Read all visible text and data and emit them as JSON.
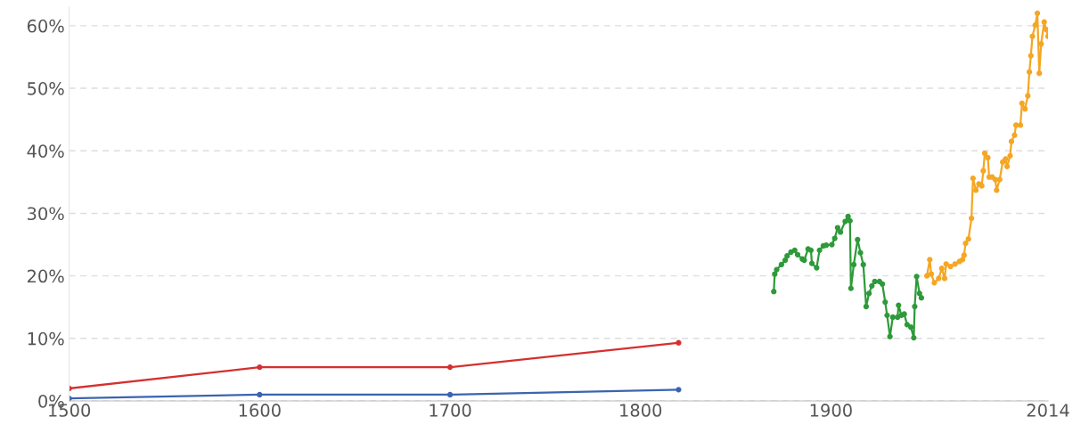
{
  "chart_data": {
    "type": "line",
    "xlim": [
      1500,
      2014
    ],
    "ylim": [
      0,
      63
    ],
    "xticks": [
      1500,
      1600,
      1700,
      1800,
      1900,
      2014
    ],
    "yticks": [
      {
        "value": 0,
        "label": "0%"
      },
      {
        "value": 10,
        "label": "10%"
      },
      {
        "value": 20,
        "label": "20%"
      },
      {
        "value": 30,
        "label": "30%"
      },
      {
        "value": 40,
        "label": "40%"
      },
      {
        "value": 50,
        "label": "50%"
      },
      {
        "value": 60,
        "label": "60%"
      }
    ],
    "grid": "y",
    "marker": "circle",
    "line_style": "solid",
    "series": [
      {
        "color": "#d62f2f",
        "x": [
          1500,
          1600,
          1700,
          1820
        ],
        "values": [
          2.0,
          5.4,
          5.4,
          9.3
        ]
      },
      {
        "color": "#3b64b0",
        "x": [
          1500,
          1600,
          1700,
          1820
        ],
        "values": [
          0.4,
          1.0,
          1.0,
          1.8
        ]
      },
      {
        "color": "#2e9a3a",
        "x": [
          1870,
          1870.5,
          1871.5,
          1874,
          1876,
          1877,
          1879,
          1881,
          1882.5,
          1885,
          1886,
          1888,
          1889.5,
          1890,
          1892.5,
          1894,
          1896,
          1897.5,
          1900.5,
          1902,
          1903.5,
          1905,
          1907.5,
          1909,
          1910,
          1910.5,
          1912,
          1914,
          1915.5,
          1917,
          1918.5,
          1920,
          1921.5,
          1923,
          1925.5,
          1927,
          1928.5,
          1929.5,
          1931,
          1932.5,
          1935,
          1935.5,
          1937,
          1938.5,
          1940,
          1942,
          1943.5,
          1944,
          1945,
          1946.5,
          1947.5
        ],
        "values": [
          17.5,
          20.3,
          21.0,
          21.8,
          22.5,
          23.2,
          23.8,
          24.1,
          23.4,
          22.7,
          22.5,
          24.3,
          24.1,
          22.0,
          21.3,
          24.1,
          24.8,
          24.9,
          25.0,
          26.0,
          27.7,
          27.0,
          28.7,
          29.5,
          28.8,
          18.0,
          21.8,
          25.8,
          23.7,
          21.8,
          15.1,
          17.2,
          18.4,
          19.1,
          19.1,
          18.7,
          15.8,
          13.7,
          10.3,
          13.4,
          13.4,
          15.3,
          13.7,
          13.9,
          12.2,
          11.8,
          10.1,
          15.1,
          19.9,
          17.2,
          16.5
        ]
      },
      {
        "color": "#f5a623",
        "x": [
          1950.4,
          1951.9,
          1952.7,
          1954.3,
          1956.6,
          1958.2,
          1959.7,
          1960.5,
          1962.8,
          1965.2,
          1967.5,
          1969.1,
          1969.9,
          1970.7,
          1972.2,
          1973.8,
          1974.6,
          1976.1,
          1977.7,
          1979.2,
          1980.0,
          1980.8,
          1982.4,
          1983.1,
          1984.7,
          1986.3,
          1987.0,
          1988.6,
          1990.2,
          1991.7,
          1992.5,
          1994.1,
          1994.8,
          1996.4,
          1997.2,
          1999.5,
          2000.3,
          2001.9,
          2003.4,
          2004.2,
          2005.0,
          2005.8,
          2007.3,
          2008.4,
          2009.4,
          2010.4,
          2012.0,
          2013.0,
          2014
        ],
        "values": [
          20.0,
          22.6,
          20.3,
          18.9,
          19.6,
          21.2,
          19.6,
          21.9,
          21.5,
          21.9,
          22.3,
          22.6,
          23.3,
          25.2,
          25.9,
          29.2,
          35.6,
          33.7,
          34.7,
          34.4,
          36.8,
          39.6,
          38.9,
          35.8,
          35.8,
          35.4,
          33.7,
          35.4,
          38.2,
          38.7,
          37.5,
          39.2,
          41.5,
          42.5,
          44.1,
          44.1,
          47.6,
          46.7,
          48.8,
          52.6,
          55.2,
          58.3,
          60.1,
          62.0,
          52.4,
          57.1,
          60.6,
          59.4,
          58.3
        ]
      }
    ]
  }
}
